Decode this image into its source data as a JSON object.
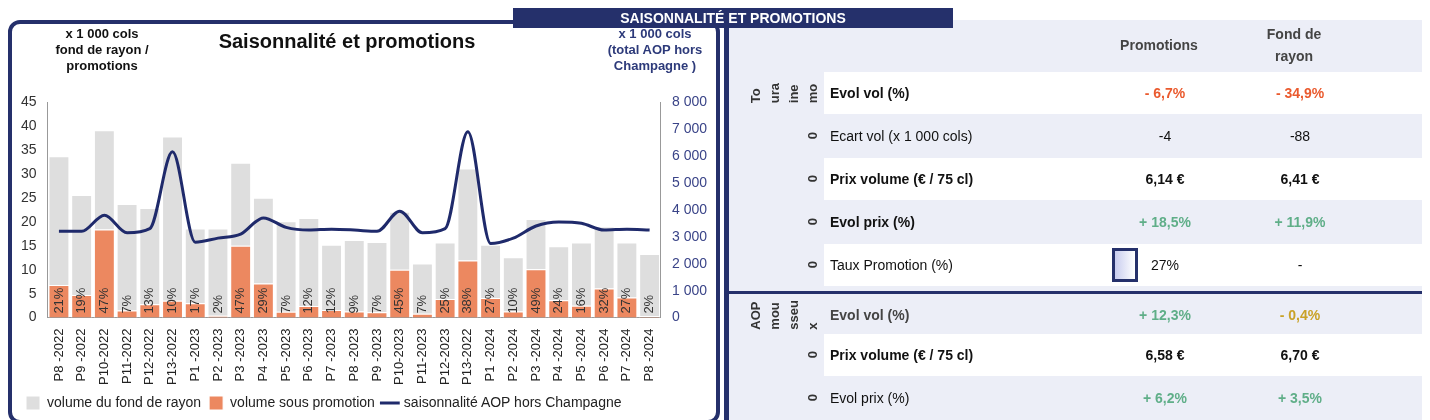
{
  "chart_data": [
    {
      "type": "bar",
      "title": "Saisonnalité et promotions",
      "ylabel": "x 1 000 cols\nfond de rayon /\npromotions",
      "y2label": "x 1 000 cols\n(total AOP hors\nChampagne )",
      "categories": [
        "P8 -2022",
        "P9 -2022",
        "P10-2022",
        "P11-2022",
        "P12-2022",
        "P13-2022",
        "P1 -2023",
        "P2 -2023",
        "P3 -2023",
        "P4 -2023",
        "P5 -2023",
        "P6 -2023",
        "P7 -2023",
        "P8 -2023",
        "P9 -2023",
        "P10-2023",
        "P11-2023",
        "P12-2023",
        "P13-2022",
        "P1 -2024",
        "P2 -2024",
        "P3 -2024",
        "P4 -2024",
        "P5 -2024",
        "P6 -2024",
        "P7 -2024",
        "P8 -2024"
      ],
      "series": [
        {
          "name": "volume sous promotion",
          "color": "#ec8860",
          "values": [
            6.8,
            4.7,
            18.4,
            1.5,
            2.8,
            3.5,
            3.0,
            0.4,
            15.0,
            7.1,
            1.2,
            2.4,
            1.6,
            1.3,
            1.1,
            10.0,
            0.8,
            3.9,
            11.9,
            4.1,
            1.3,
            10.1,
            3.6,
            2.5,
            6.1,
            4.2,
            0.3
          ]
        },
        {
          "name": "volume du fond de rayon",
          "color": "#dedede",
          "values": [
            26.9,
            20.9,
            20.7,
            22.2,
            20.1,
            34.3,
            15.6,
            18.2,
            17.3,
            17.9,
            18.9,
            18.4,
            13.6,
            14.9,
            14.7,
            12.1,
            10.5,
            11.8,
            19.2,
            11.1,
            11.3,
            10.5,
            11.3,
            13.2,
            12.9,
            11.5,
            13.0
          ]
        },
        {
          "name": "saisonnalité AOP hors Champagne",
          "type": "line",
          "axis": "y2",
          "color": "#1f2a6b",
          "values": [
            3200,
            3200,
            3800,
            3150,
            3300,
            6150,
            2800,
            2950,
            3100,
            3700,
            3350,
            3250,
            3280,
            3250,
            3200,
            3950,
            3150,
            3300,
            6900,
            2750,
            2950,
            3400,
            3550,
            3500,
            3250,
            3280,
            3250
          ]
        }
      ],
      "stacked": true,
      "ylim": [
        0,
        45
      ],
      "yticks": [
        0,
        5,
        10,
        15,
        20,
        25,
        30,
        35,
        40,
        45
      ],
      "y2lim": [
        0,
        8000
      ],
      "y2ticks": [
        0,
        {
          "value": 1000,
          "label": "1 000"
        },
        {
          "value": 2000,
          "label": "2 000"
        },
        {
          "value": 3000,
          "label": "3 000"
        },
        {
          "value": 4000,
          "label": "4 000"
        },
        {
          "value": 5000,
          "label": "5 000"
        },
        {
          "value": 6000,
          "label": "6 000"
        },
        {
          "value": 7000,
          "label": "7 000"
        },
        {
          "value": 8000,
          "label": "8 000"
        }
      ],
      "legend": "bottom",
      "annotations": [
        {
          "text": "21%",
          "x": "P8 -2022",
          "y": 0
        },
        {
          "text": "19%",
          "x": "P9 -2022",
          "y": 0
        },
        {
          "text": "47%",
          "x": "P10-2022",
          "y": 0
        },
        {
          "text": "7%",
          "x": "P11-2022",
          "y": 0
        },
        {
          "text": "13%",
          "x": "P12-2022",
          "y": 0
        },
        {
          "text": "10%",
          "x": "P13-2022",
          "y": 0
        },
        {
          "text": "17%",
          "x": "P1 -2023",
          "y": 0
        },
        {
          "text": "2%",
          "x": "P2 -2023",
          "y": 0
        },
        {
          "text": "47%",
          "x": "P3 -2023",
          "y": 0
        },
        {
          "text": "29%",
          "x": "P4 -2023",
          "y": 0
        },
        {
          "text": "7%",
          "x": "P5 -2023",
          "y": 0
        },
        {
          "text": "12%",
          "x": "P6 -2023",
          "y": 0
        },
        {
          "text": "12%",
          "x": "P7 -2023",
          "y": 0
        },
        {
          "text": "9%",
          "x": "P8 -2023",
          "y": 0
        },
        {
          "text": "7%",
          "x": "P9 -2023",
          "y": 0
        },
        {
          "text": "45%",
          "x": "P10-2023",
          "y": 0
        },
        {
          "text": "7%",
          "x": "P11-2023",
          "y": 0
        },
        {
          "text": "25%",
          "x": "P12-2023",
          "y": 0
        },
        "38%",
        {
          "text": "27%",
          "x": "P1 -2024",
          "y": 0
        },
        {
          "text": "10%",
          "x": "P2 -2024",
          "y": 0
        },
        {
          "text": "49%",
          "x": "P3 -2024",
          "y": 0
        },
        {
          "text": "24%",
          "x": "P4 -2024",
          "y": 0
        },
        {
          "text": "16%",
          "x": "P5 -2024",
          "y": 0
        },
        {
          "text": "32%",
          "x": "P6 -2024",
          "y": 0
        },
        {
          "text": "27%",
          "x": "P7 -2024",
          "y": 0
        },
        {
          "text": "2%",
          "x": "P8 -2024",
          "y": 0
        }
      ]
    },
    {
      "type": "other",
      "title": "SAISONNALITÉ ET PROMOTIONS",
      "categories": [
        "Promotions",
        "Fond de\nrayon"
      ],
      "annotations": [
        "To ura ine mo",
        "Evol vol (%)",
        "- 6,7%",
        "- 34,9%",
        "0",
        "Ecart vol (x 1 000  cols)",
        "-4",
        "-88",
        "0",
        "Prix volume (€ / 75 cl)",
        "6,14 €",
        "6,41 €",
        "0",
        "Evol prix (%)",
        "+ 18,5%",
        "+ 11,9%",
        "0",
        "Taux Promotion (%)",
        "27%",
        "-",
        "AOP mou sseu x",
        "Evol vol (%)",
        "+ 12,3%",
        "- 0,4%",
        "0",
        "Prix volume (€ / 75 cl)",
        "6,58 €",
        "6,70 €",
        "0",
        "Evol prix (%)",
        "+ 6,2%",
        "+ 3,5%"
      ],
      "colors": [
        null,
        null,
        "#ea5a2e",
        "#ea5a2e",
        null,
        null,
        null,
        null,
        null,
        null,
        null,
        null,
        null,
        null,
        "#5fae88",
        "#5fae88",
        null,
        null,
        null,
        null,
        null,
        null,
        "#5fae88",
        "#c9a227",
        null,
        null,
        null,
        null,
        null,
        null,
        "#5fae88",
        "#5fae88"
      ]
    }
  ]
}
